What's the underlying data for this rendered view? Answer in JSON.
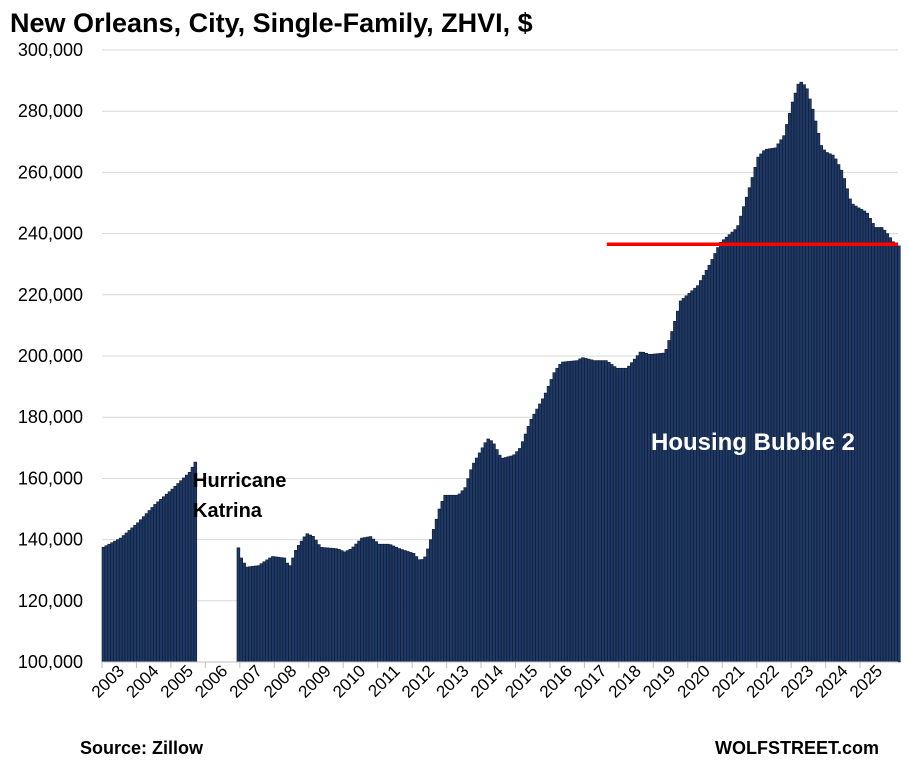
{
  "chart_data": {
    "type": "bar",
    "title": "New Orleans, City, Single-Family, ZHVI, $",
    "ylim": [
      100000,
      300000
    ],
    "y_ticks": [
      "100,000",
      "120,000",
      "140,000",
      "160,000",
      "180,000",
      "200,000",
      "220,000",
      "240,000",
      "260,000",
      "280,000",
      "300,000"
    ],
    "x_ticks": [
      "2003",
      "2004",
      "2005",
      "2006",
      "2007",
      "2008",
      "2009",
      "2010",
      "2011",
      "2012",
      "2013",
      "2014",
      "2015",
      "2016",
      "2017",
      "2018",
      "2019",
      "2020",
      "2021",
      "2022",
      "2023",
      "2024",
      "2025"
    ],
    "x_range": [
      2003.0,
      2025.75
    ],
    "grid": true,
    "bar_color": "#1f3864",
    "gap": {
      "from": 2005.75,
      "to": 2006.9
    },
    "series": [
      {
        "values_monthly_note_is_not_included": true,
        "anchors": [
          [
            2003.0,
            137500
          ],
          [
            2003.5,
            140500
          ],
          [
            2004.0,
            145500
          ],
          [
            2004.5,
            151500
          ],
          [
            2005.0,
            156500
          ],
          [
            2005.5,
            162000
          ],
          [
            2005.7,
            166000
          ],
          [
            2006.9,
            138000
          ],
          [
            2007.0,
            134000
          ],
          [
            2007.15,
            131000
          ],
          [
            2007.5,
            131500
          ],
          [
            2007.9,
            134500
          ],
          [
            2008.25,
            134000
          ],
          [
            2008.4,
            131000
          ],
          [
            2008.6,
            137000
          ],
          [
            2008.9,
            142000
          ],
          [
            2009.1,
            141000
          ],
          [
            2009.3,
            137500
          ],
          [
            2009.8,
            137000
          ],
          [
            2010.0,
            136000
          ],
          [
            2010.2,
            137000
          ],
          [
            2010.5,
            140500
          ],
          [
            2010.75,
            141000
          ],
          [
            2011.0,
            138500
          ],
          [
            2011.3,
            138500
          ],
          [
            2011.6,
            137000
          ],
          [
            2012.0,
            135500
          ],
          [
            2012.2,
            133000
          ],
          [
            2012.35,
            134500
          ],
          [
            2012.5,
            140000
          ],
          [
            2012.75,
            150000
          ],
          [
            2012.9,
            154500
          ],
          [
            2013.3,
            154500
          ],
          [
            2013.5,
            157000
          ],
          [
            2013.7,
            164000
          ],
          [
            2014.0,
            170000
          ],
          [
            2014.15,
            173000
          ],
          [
            2014.3,
            172000
          ],
          [
            2014.55,
            166500
          ],
          [
            2014.9,
            167500
          ],
          [
            2015.1,
            170000
          ],
          [
            2015.4,
            179000
          ],
          [
            2015.8,
            187000
          ],
          [
            2016.1,
            195000
          ],
          [
            2016.3,
            198000
          ],
          [
            2016.75,
            198500
          ],
          [
            2016.9,
            199500
          ],
          [
            2017.25,
            198500
          ],
          [
            2017.6,
            198500
          ],
          [
            2017.9,
            196000
          ],
          [
            2018.2,
            196000
          ],
          [
            2018.6,
            201500
          ],
          [
            2018.85,
            200500
          ],
          [
            2019.3,
            201000
          ],
          [
            2019.5,
            208000
          ],
          [
            2019.75,
            218000
          ],
          [
            2020.25,
            223000
          ],
          [
            2020.6,
            230000
          ],
          [
            2020.9,
            237000
          ],
          [
            2021.4,
            242000
          ],
          [
            2021.75,
            255000
          ],
          [
            2022.0,
            265000
          ],
          [
            2022.2,
            267500
          ],
          [
            2022.5,
            268000
          ],
          [
            2022.75,
            272000
          ],
          [
            2023.0,
            283000
          ],
          [
            2023.2,
            290000
          ],
          [
            2023.4,
            288000
          ],
          [
            2023.6,
            280000
          ],
          [
            2023.85,
            268000
          ],
          [
            2024.0,
            266500
          ],
          [
            2024.2,
            265500
          ],
          [
            2024.45,
            260000
          ],
          [
            2024.7,
            250000
          ],
          [
            2024.9,
            248500
          ],
          [
            2025.15,
            247000
          ],
          [
            2025.4,
            242000
          ],
          [
            2025.6,
            242000
          ],
          [
            2025.75,
            240000
          ],
          [
            2026.0,
            236000
          ]
        ]
      }
    ],
    "reference_line": {
      "value": 236500,
      "from": 2017.65,
      "to": 2026.1,
      "color": "#ff0000"
    },
    "annotations": [
      "Hurricane",
      "Katrina",
      "Housing Bubble 2"
    ]
  },
  "footer": {
    "source": "Source: Zillow",
    "brand": "WOLFSTREET.com"
  }
}
